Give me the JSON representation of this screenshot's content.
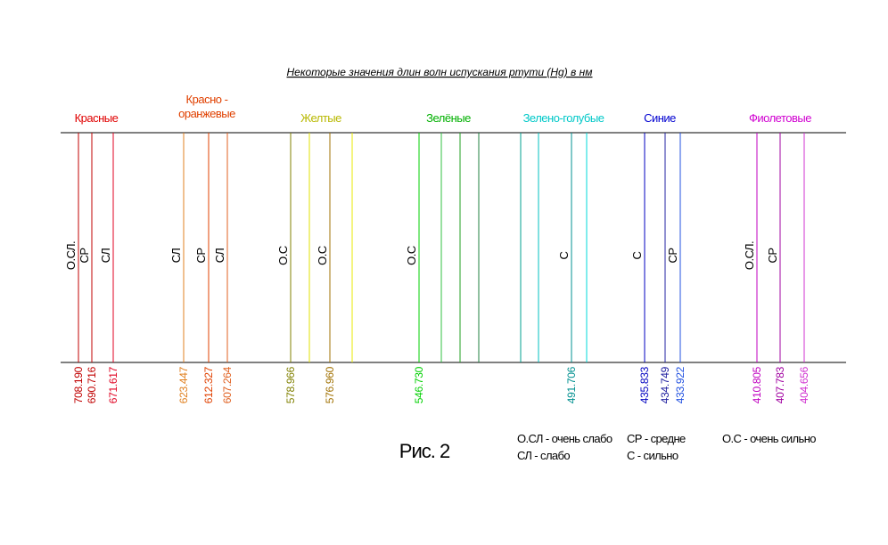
{
  "title": "Некоторые значения длин волн испускания ртути (Hg) в нм",
  "figure_label": "Рис. 2",
  "groups": [
    {
      "lines": [
        "Красные"
      ],
      "color": "#e00000"
    },
    {
      "lines": [
        "Красно -",
        "оранжевые"
      ],
      "color": "#e04000"
    },
    {
      "lines": [
        "Желтые"
      ],
      "color": "#b8b800"
    },
    {
      "lines": [
        "Зелёные"
      ],
      "color": "#00b000"
    },
    {
      "lines": [
        "Зелено-голубые"
      ],
      "color": "#00c8c8"
    },
    {
      "lines": [
        "Синие"
      ],
      "color": "#0000d0"
    },
    {
      "lines": [
        "Фиолетовые"
      ],
      "color": "#d000d0"
    }
  ],
  "lines": [
    {
      "color": "#c00000",
      "mark": "О.СЛ.",
      "wavelength": "708.190"
    },
    {
      "color": "#c00000",
      "mark": "СР",
      "wavelength": "690.716"
    },
    {
      "color": "#e00020",
      "mark": "СЛ",
      "wavelength": "671.617"
    },
    {
      "color": "#e08020",
      "mark": "СЛ",
      "wavelength": "623.447"
    },
    {
      "color": "#e04000",
      "mark": "СР",
      "wavelength": "612.327"
    },
    {
      "color": "#e06020",
      "mark": "СЛ",
      "wavelength": "607.264"
    },
    {
      "color": "#808000",
      "mark": "О.С",
      "wavelength": "578.966"
    },
    {
      "color": "#e0e000",
      "mark": "",
      "wavelength": ""
    },
    {
      "color": "#a07000",
      "mark": "О.С",
      "wavelength": "576.960"
    },
    {
      "color": "#e8e800",
      "mark": "",
      "wavelength": ""
    },
    {
      "color": "#00d000",
      "mark": "О.С",
      "wavelength": "546.730"
    },
    {
      "color": "#30c040",
      "mark": "",
      "wavelength": ""
    },
    {
      "color": "#20a020",
      "mark": "",
      "wavelength": ""
    },
    {
      "color": "#208040",
      "mark": "",
      "wavelength": ""
    },
    {
      "color": "#00a090",
      "mark": "",
      "wavelength": ""
    },
    {
      "color": "#00c0c0",
      "mark": "",
      "wavelength": ""
    },
    {
      "color": "#009090",
      "mark": "С",
      "wavelength": "491.706"
    },
    {
      "color": "#00d8d8",
      "mark": "",
      "wavelength": ""
    },
    {
      "color": "#0000c0",
      "mark": "С",
      "wavelength": "435.833"
    },
    {
      "color": "#2020a0",
      "mark": "",
      "wavelength": "434.749"
    },
    {
      "color": "#2050e0",
      "mark": "СР",
      "wavelength": "433.922"
    },
    {
      "color": "#c000c0",
      "mark": "О.СЛ.",
      "wavelength": "410.805"
    },
    {
      "color": "#a000a0",
      "mark": "СР",
      "wavelength": "407.783"
    },
    {
      "color": "#d030d0",
      "mark": "",
      "wavelength": "404.656"
    }
  ],
  "legend": {
    "row1": [
      "О.СЛ - очень слабо",
      "СР - средне",
      "О.С - очень сильно"
    ],
    "row2": [
      "СЛ - слабо",
      "С - сильно"
    ]
  }
}
